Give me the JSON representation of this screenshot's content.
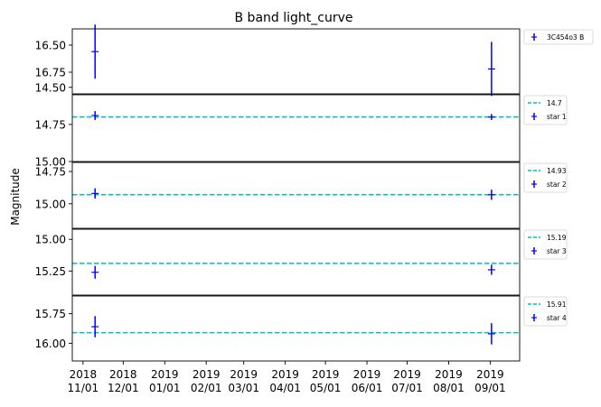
{
  "chart_data": {
    "type": "scatter",
    "title": "B band light_curve",
    "ylabel": "Magnitude",
    "xlabel": "",
    "x_ticks": [
      "2018\n11/01",
      "2018\n12/01",
      "2019\n01/01",
      "2019\n02/01",
      "2019\n03/01",
      "2019\n04/01",
      "2019\n05/01",
      "2019\n06/01",
      "2019\n07/01",
      "2019\n08/01",
      "2019\n09/01"
    ],
    "x_dates": [
      "2018-11-01",
      "2018-12-01",
      "2019-01-01",
      "2019-02-01",
      "2019-03-01",
      "2019-04-01",
      "2019-05-01",
      "2019-06-01",
      "2019-07-01",
      "2019-08-01",
      "2019-09-01"
    ],
    "xlim": [
      "2018-10-24",
      "2019-09-23"
    ],
    "y_inverted": true,
    "grid": false,
    "colors": {
      "points": "#0000ff",
      "reference_line": "#00bfbf",
      "axes": "#000000"
    },
    "panels": [
      {
        "name": "3C454o3 B",
        "ylim": [
          16.35,
          16.95
        ],
        "yticks": [
          "16.50",
          "16.75"
        ],
        "ytick_values": [
          16.5,
          16.75
        ],
        "reference": null,
        "points": [
          {
            "x": "2018-11-10",
            "y": 16.56,
            "yerr": 0.25
          },
          {
            "x": "2019-09-02",
            "y": 16.72,
            "yerr": 0.25
          }
        ]
      },
      {
        "name": "star 1",
        "ylim": [
          14.55,
          15.0
        ],
        "yticks": [
          "14.50",
          "14.75",
          "15.00"
        ],
        "ytick_values": [
          14.5,
          14.75,
          15.0
        ],
        "reference": {
          "label": "14.7",
          "value": 14.7
        },
        "points": [
          {
            "x": "2018-11-10",
            "y": 14.69,
            "yerr": 0.03
          },
          {
            "x": "2019-09-02",
            "y": 14.7,
            "yerr": 0.02
          }
        ]
      },
      {
        "name": "star 2",
        "ylim": [
          14.68,
          15.19
        ],
        "yticks": [
          "14.75",
          "15.00"
        ],
        "ytick_values": [
          14.75,
          15.0
        ],
        "reference": {
          "label": "14.93",
          "value": 14.93
        },
        "points": [
          {
            "x": "2018-11-10",
            "y": 14.92,
            "yerr": 0.04
          },
          {
            "x": "2019-09-02",
            "y": 14.93,
            "yerr": 0.04
          }
        ]
      },
      {
        "name": "star 3",
        "ylim": [
          14.92,
          15.44
        ],
        "yticks": [
          "15.00",
          "15.25"
        ],
        "ytick_values": [
          15.0,
          15.25
        ],
        "reference": {
          "label": "15.19",
          "value": 15.19
        },
        "points": [
          {
            "x": "2018-11-10",
            "y": 15.26,
            "yerr": 0.05
          },
          {
            "x": "2019-09-02",
            "y": 15.24,
            "yerr": 0.04
          }
        ]
      },
      {
        "name": "star 4",
        "ylim": [
          15.6,
          16.15
        ],
        "yticks": [
          "15.75",
          "16.00"
        ],
        "ytick_values": [
          15.75,
          16.0
        ],
        "reference": {
          "label": "15.91",
          "value": 15.91
        },
        "points": [
          {
            "x": "2018-11-10",
            "y": 15.86,
            "yerr": 0.09
          },
          {
            "x": "2019-09-02",
            "y": 15.92,
            "yerr": 0.09
          }
        ]
      }
    ]
  }
}
